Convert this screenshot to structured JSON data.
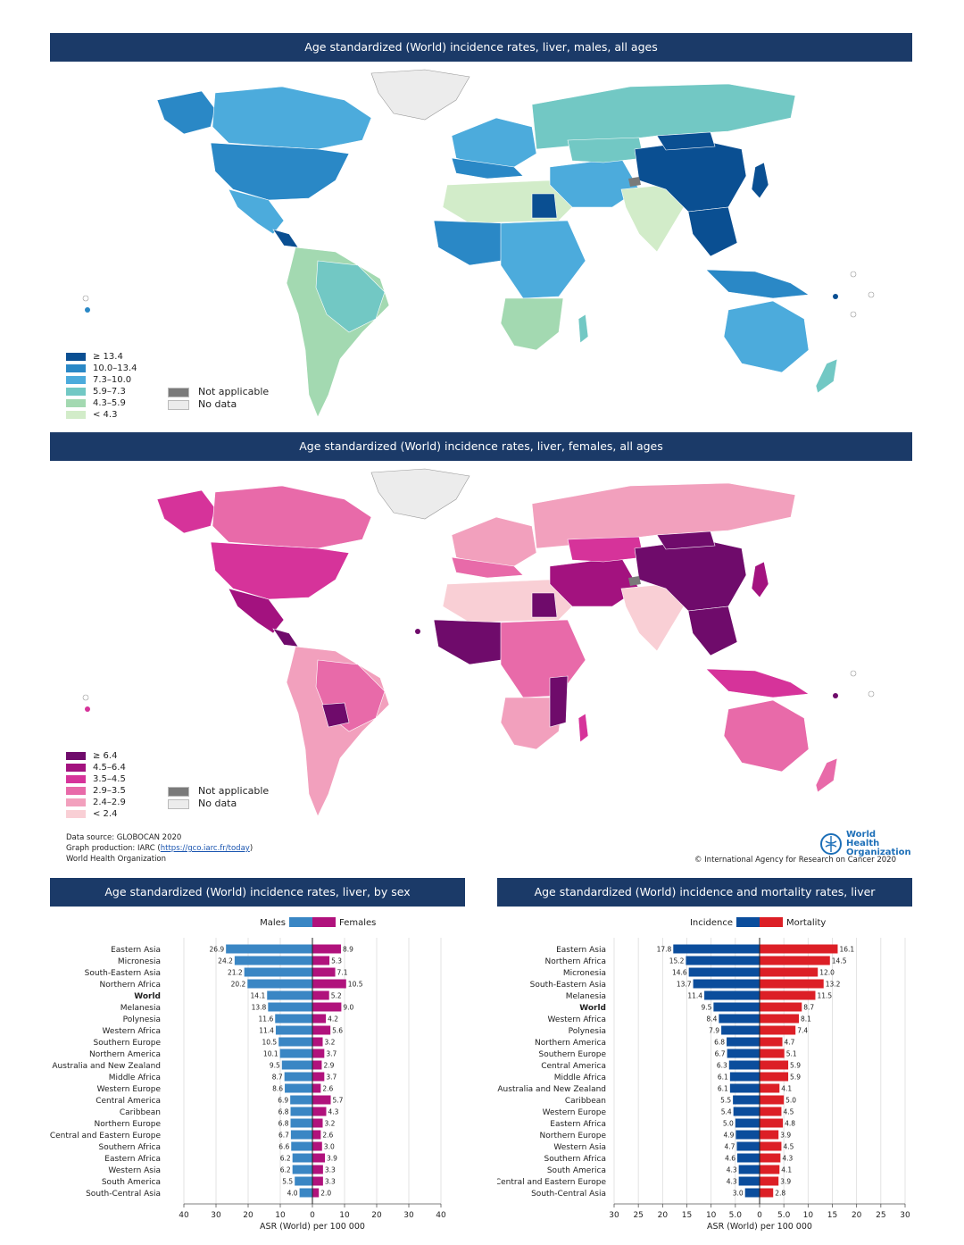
{
  "map_males": {
    "title": "Age standardized (World) incidence rates, liver, males, all ages",
    "legend": [
      {
        "label": "≥ 13.4",
        "color": "#0a4f92"
      },
      {
        "label": "10.0–13.4",
        "color": "#2a88c6"
      },
      {
        "label": "7.3–10.0",
        "color": "#4cabdc"
      },
      {
        "label": "5.9–7.3",
        "color": "#72c8c4"
      },
      {
        "label": "4.3–5.9",
        "color": "#a3d9b1"
      },
      {
        "label": "< 4.3",
        "color": "#d2ecc9"
      }
    ],
    "not_applicable": "Not applicable",
    "no_data": "No data"
  },
  "map_females": {
    "title": "Age standardized (World) incidence rates, liver, females, all ages",
    "legend": [
      {
        "label": "≥ 6.4",
        "color": "#6f0b6b"
      },
      {
        "label": "4.5–6.4",
        "color": "#a3127f"
      },
      {
        "label": "3.5–4.5",
        "color": "#d6339a"
      },
      {
        "label": "2.9–3.5",
        "color": "#e86aa9"
      },
      {
        "label": "2.4–2.9",
        "color": "#f2a0bd"
      },
      {
        "label": "< 2.4",
        "color": "#f9cfd5"
      }
    ],
    "not_applicable": "Not applicable",
    "no_data": "No data"
  },
  "colors": {
    "na": "#7a7a7a",
    "nodata": "#ececec",
    "banner": "#1b3a68"
  },
  "source": {
    "line1": "Data source: GLOBOCAN 2020",
    "line2_prefix": "Graph production: IARC (",
    "line2_link": "https://gco.iarc.fr/today",
    "line2_suffix": ")",
    "line3": "World Health Organization"
  },
  "who_logo": "World Health Organization",
  "copyright": "© International Agency for Research on Cancer 2020",
  "chart_data": [
    {
      "type": "bar",
      "title": "Age standardized (World) incidence rates, liver, by sex",
      "xlabel": "ASR (World) per 100 000",
      "xlim": [
        -40,
        40
      ],
      "ticks": [
        40,
        30,
        20,
        10,
        0,
        10,
        20,
        30,
        40
      ],
      "categories": [
        "Eastern Asia",
        "Micronesia",
        "South-Eastern Asia",
        "Northern Africa",
        "World",
        "Melanesia",
        "Polynesia",
        "Western Africa",
        "Southern Europe",
        "Northern America",
        "Australia and New Zealand",
        "Middle Africa",
        "Western Europe",
        "Central America",
        "Caribbean",
        "Northern Europe",
        "Central and Eastern Europe",
        "Southern Africa",
        "Eastern Africa",
        "Western Asia",
        "South America",
        "South-Central Asia"
      ],
      "series": [
        {
          "name": "Males",
          "color": "#3a86c4",
          "values": [
            26.9,
            24.2,
            21.2,
            20.2,
            14.1,
            13.8,
            11.6,
            11.4,
            10.5,
            10.1,
            9.5,
            8.7,
            8.6,
            6.9,
            6.8,
            6.8,
            6.7,
            6.6,
            6.2,
            6.2,
            5.5,
            4.0
          ]
        },
        {
          "name": "Females",
          "color": "#b0127c",
          "values": [
            8.9,
            5.3,
            7.1,
            10.5,
            5.2,
            9.0,
            4.2,
            5.6,
            3.2,
            3.7,
            2.9,
            3.7,
            2.6,
            5.7,
            4.3,
            3.2,
            2.6,
            3.0,
            3.9,
            3.3,
            3.3,
            2.0
          ]
        }
      ]
    },
    {
      "type": "bar",
      "title": "Age standardized (World) incidence and mortality rates, liver",
      "xlabel": "ASR (World) per 100 000",
      "xlim": [
        -30,
        30
      ],
      "ticks": [
        "30",
        "25",
        "20",
        "15",
        "10",
        "5.0",
        "0",
        "5.0",
        "10",
        "15",
        "20",
        "25",
        "30"
      ],
      "categories": [
        "Eastern Asia",
        "Northern Africa",
        "Micronesia",
        "South-Eastern Asia",
        "Melanesia",
        "World",
        "Western Africa",
        "Polynesia",
        "Northern America",
        "Southern Europe",
        "Central America",
        "Middle Africa",
        "Australia and New Zealand",
        "Caribbean",
        "Western Europe",
        "Eastern Africa",
        "Northern Europe",
        "Western Asia",
        "Southern Africa",
        "South America",
        "Central and Eastern Europe",
        "South-Central Asia"
      ],
      "series": [
        {
          "name": "Incidence",
          "color": "#0b4d9c",
          "values": [
            17.8,
            15.2,
            14.6,
            13.7,
            11.4,
            9.5,
            8.4,
            7.9,
            6.8,
            6.7,
            6.3,
            6.1,
            6.1,
            5.5,
            5.4,
            5.0,
            4.9,
            4.7,
            4.6,
            4.3,
            4.3,
            3.0
          ]
        },
        {
          "name": "Mortality",
          "color": "#dc1f26",
          "values": [
            16.1,
            14.5,
            12.0,
            13.2,
            11.5,
            8.7,
            8.1,
            7.4,
            4.7,
            5.1,
            5.9,
            5.9,
            4.1,
            5.0,
            4.5,
            4.8,
            3.9,
            4.5,
            4.3,
            4.1,
            3.9,
            2.8
          ]
        }
      ]
    }
  ]
}
